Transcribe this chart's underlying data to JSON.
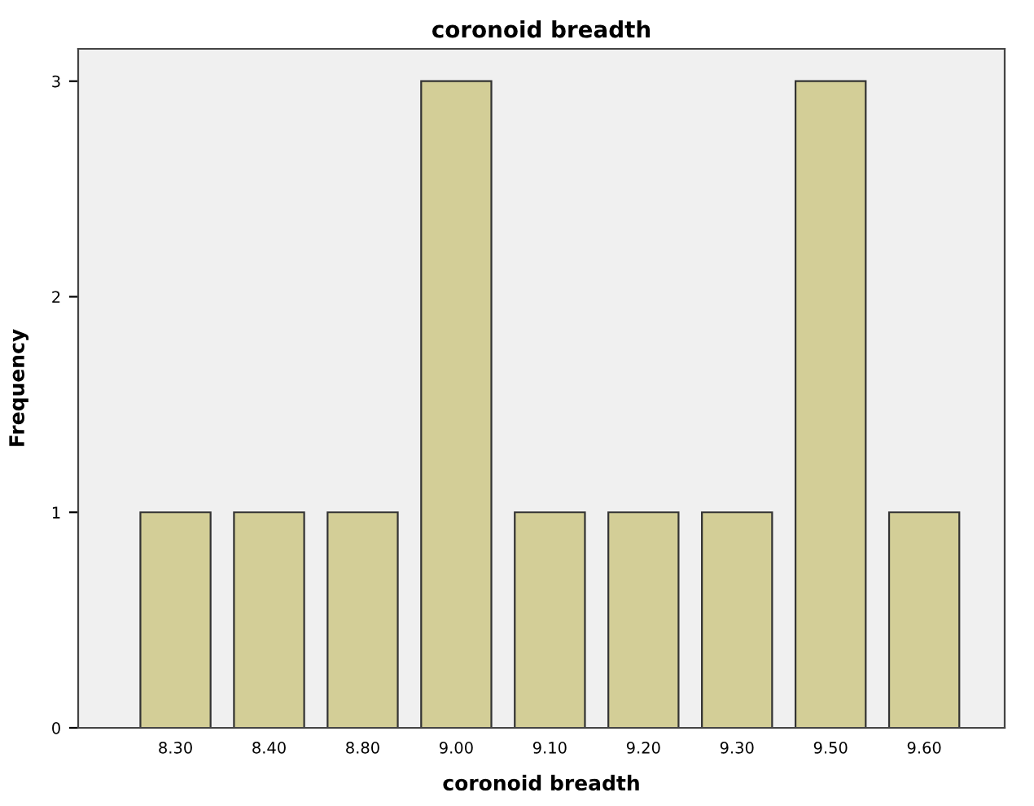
{
  "chart_data": {
    "type": "bar",
    "title": "coronoid breadth",
    "xlabel": "coronoid breadth",
    "ylabel": "Frequency",
    "categories": [
      "8.30",
      "8.40",
      "8.80",
      "9.00",
      "9.10",
      "9.20",
      "9.30",
      "9.50",
      "9.60"
    ],
    "values": [
      1,
      1,
      1,
      3,
      1,
      1,
      1,
      3,
      1
    ],
    "color": "#d3ce97",
    "ylim": [
      0,
      3.15
    ],
    "yticks": [
      0,
      1,
      2,
      3
    ],
    "grid": false
  }
}
